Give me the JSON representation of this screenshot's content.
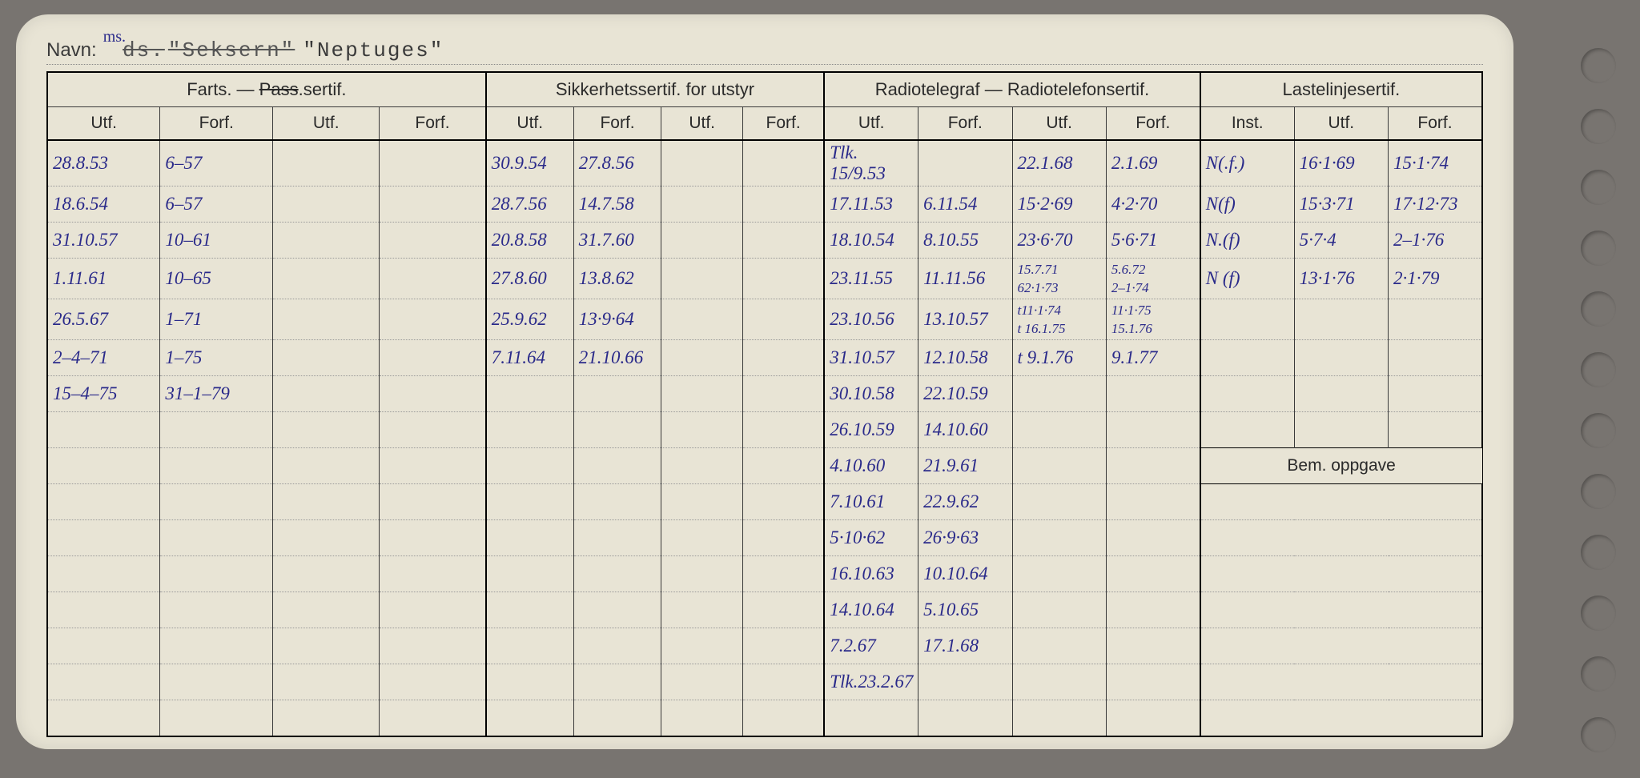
{
  "title": {
    "label": "Navn:",
    "annotation": "ms.",
    "struck1": "ds.",
    "struck2": "\"Seksern\"",
    "name": "\"Neptuges\""
  },
  "headers": {
    "group1": "Farts. — Pass.sertif.",
    "group2": "Sikkerhetssertif. for utstyr",
    "group3": "Radiotelegraf — Radiotelefonsertif.",
    "group4": "Lastelinjesertif.",
    "utf": "Utf.",
    "forf": "Forf.",
    "inst": "Inst.",
    "bem": "Bem. oppgave"
  },
  "farts": [
    {
      "utf": "28.8.53",
      "forf": "6–57"
    },
    {
      "utf": "18.6.54",
      "forf": "6–57"
    },
    {
      "utf": "31.10.57",
      "forf": "10–61"
    },
    {
      "utf": "1.11.61",
      "forf": "10–65"
    },
    {
      "utf": "26.5.67",
      "forf": "1–71"
    },
    {
      "utf": "2–4–71",
      "forf": "1–75"
    },
    {
      "utf": "15–4–75",
      "forf": "31–1–79"
    }
  ],
  "sikker": [
    {
      "utf": "30.9.54",
      "forf": "27.8.56"
    },
    {
      "utf": "28.7.56",
      "forf": "14.7.58"
    },
    {
      "utf": "20.8.58",
      "forf": "31.7.60"
    },
    {
      "utf": "27.8.60",
      "forf": "13.8.62"
    },
    {
      "utf": "25.9.62",
      "forf": "13·9·64"
    },
    {
      "utf": "7.11.64",
      "forf": "21.10.66"
    }
  ],
  "radioA": [
    {
      "utf": "Tlk. 15/9.53",
      "forf": ""
    },
    {
      "utf": "17.11.53",
      "forf": "6.11.54"
    },
    {
      "utf": "18.10.54",
      "forf": "8.10.55"
    },
    {
      "utf": "23.11.55",
      "forf": "11.11.56"
    },
    {
      "utf": "23.10.56",
      "forf": "13.10.57"
    },
    {
      "utf": "31.10.57",
      "forf": "12.10.58"
    },
    {
      "utf": "30.10.58",
      "forf": "22.10.59"
    },
    {
      "utf": "26.10.59",
      "forf": "14.10.60"
    },
    {
      "utf": "4.10.60",
      "forf": "21.9.61"
    },
    {
      "utf": "7.10.61",
      "forf": "22.9.62"
    },
    {
      "utf": "5·10·62",
      "forf": "26·9·63"
    },
    {
      "utf": "16.10.63",
      "forf": "10.10.64"
    },
    {
      "utf": "14.10.64",
      "forf": "5.10.65"
    },
    {
      "utf": "7.2.67",
      "forf": "17.1.68"
    },
    {
      "utf": "Tlk.23.2.67",
      "forf": ""
    }
  ],
  "radioB": [
    {
      "utf": "22.1.68",
      "forf": "2.1.69"
    },
    {
      "utf": "15·2·69",
      "forf": "4·2·70"
    },
    {
      "utf": "23·6·70",
      "forf": "5·6·71"
    },
    {
      "utf": "15.7.71\n62·1·73",
      "forf": "5.6.72\n2–1·74"
    },
    {
      "utf": "t11·1·74\nt 16.1.75",
      "forf": "11·1·75\n15.1.76"
    },
    {
      "utf": "t 9.1.76",
      "forf": "9.1.77"
    }
  ],
  "laste": [
    {
      "inst": "N(.f.)",
      "utf": "16·1·69",
      "forf": "15·1·74"
    },
    {
      "inst": "N(f)",
      "utf": "15·3·71",
      "forf": "17·12·73"
    },
    {
      "inst": "N.(f)",
      "utf": "5·7·4",
      "forf": "2–1·76"
    },
    {
      "inst": "N (f)",
      "utf": "13·1·76",
      "forf": "2·1·79"
    }
  ],
  "style": {
    "background": "#e8e4d5",
    "page_bg": "#787470",
    "hand_color": "#2a2a8a",
    "print_color": "#3a3a3a",
    "card_radius": 40
  }
}
